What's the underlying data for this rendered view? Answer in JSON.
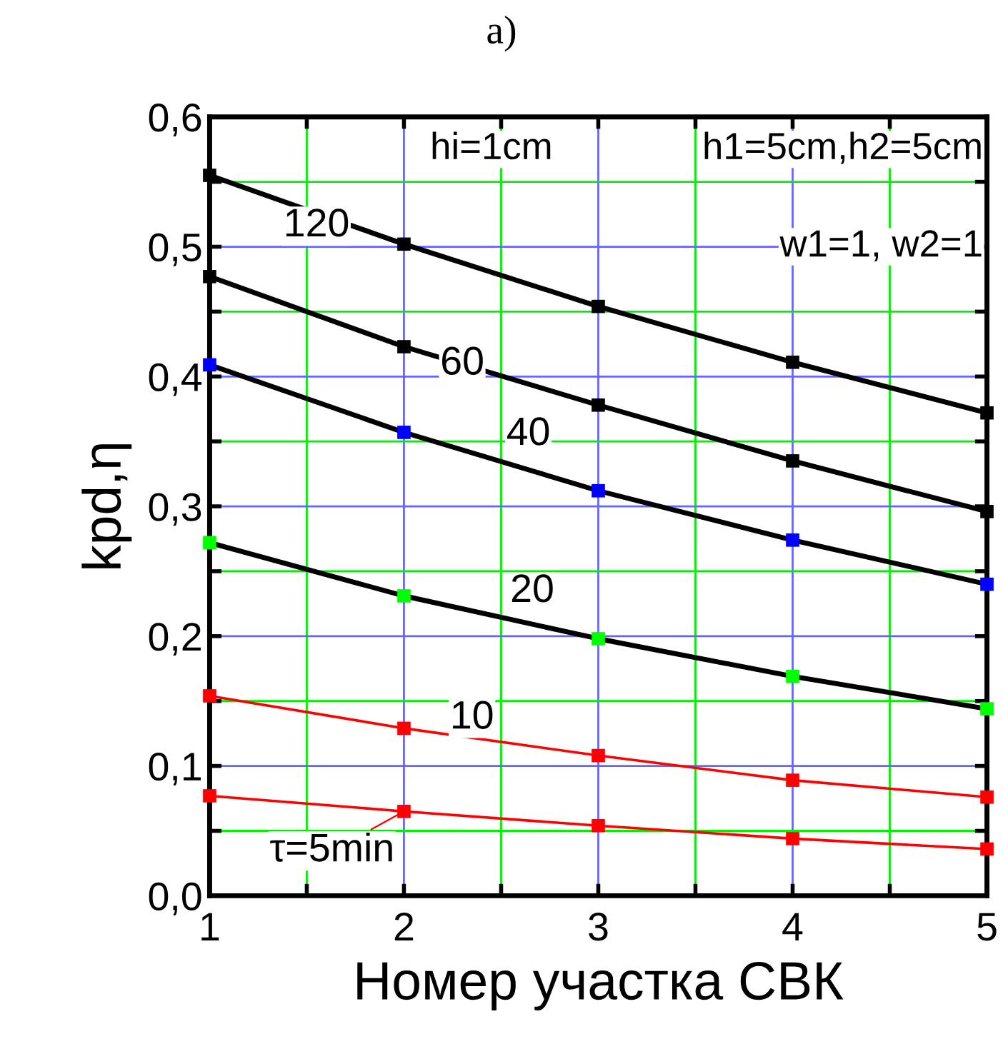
{
  "chart_data": {
    "type": "line",
    "title": "a)",
    "xlabel": "Номер участка СВК",
    "ylabel": "kpd,η",
    "x": [
      1,
      2,
      3,
      4,
      5
    ],
    "series": [
      {
        "name": "120",
        "color": "#000000",
        "colors": [
          "#000000",
          "#000000",
          "#000000",
          "#000000",
          "#000000"
        ],
        "values": [
          0.555,
          0.502,
          0.454,
          0.411,
          0.372
        ]
      },
      {
        "name": "60",
        "color": "#000000",
        "colors": [
          "#000000",
          "#000000",
          "#000000",
          "#000000",
          "#000000"
        ],
        "values": [
          0.477,
          0.423,
          0.378,
          0.335,
          0.296
        ]
      },
      {
        "name": "40",
        "color": "#000000",
        "colors": [
          "#0000ff",
          "#0000ff",
          "#0000ff",
          "#0000ff",
          "#0000ff"
        ],
        "values": [
          0.409,
          0.357,
          0.312,
          0.274,
          0.24
        ]
      },
      {
        "name": "20",
        "color": "#000000",
        "colors": [
          "#00ff00",
          "#00ff00",
          "#00ff00",
          "#00ff00",
          "#00ff00"
        ],
        "values": [
          0.272,
          0.231,
          0.198,
          0.169,
          0.144
        ]
      },
      {
        "name": "10",
        "color": "#ff0000",
        "colors": [
          "#ff0000",
          "#ff0000",
          "#ff0000",
          "#ff0000",
          "#ff0000"
        ],
        "values": [
          0.154,
          0.129,
          0.108,
          0.089,
          0.076
        ]
      },
      {
        "name": "τ=5min",
        "color": "#ff0000",
        "colors": [
          "#ff0000",
          "#ff0000",
          "#ff0000",
          "#ff0000",
          "#ff0000"
        ],
        "values": [
          0.077,
          0.065,
          0.054,
          0.044,
          0.036
        ]
      }
    ],
    "annotations": [
      "hi=1cm",
      "h1=5cm,h2=5cm",
      "w1=1, w2=1"
    ],
    "xlim": [
      1,
      5
    ],
    "ylim": [
      0,
      0.6
    ],
    "xticks": [
      1,
      {
        "value": 1.5,
        "label": null
      },
      2,
      {
        "value": 2.5,
        "label": null
      },
      3,
      {
        "value": 3.5,
        "label": null
      },
      4,
      {
        "value": 4.5,
        "label": null
      },
      5
    ],
    "yticks": [
      {
        "value": 0.0,
        "label": "0,0"
      },
      {
        "value": 0.05,
        "label": null
      },
      {
        "value": 0.1,
        "label": "0,1"
      },
      {
        "value": 0.15,
        "label": null
      },
      {
        "value": 0.2,
        "label": "0,2"
      },
      {
        "value": 0.25,
        "label": null
      },
      {
        "value": 0.3,
        "label": "0,3"
      },
      {
        "value": 0.35,
        "label": null
      },
      {
        "value": 0.4,
        "label": "0,4"
      },
      {
        "value": 0.45,
        "label": null
      },
      {
        "value": 0.5,
        "label": "0,5"
      },
      {
        "value": 0.55,
        "label": null
      },
      {
        "value": 0.6,
        "label": "0,6"
      }
    ],
    "grid": true,
    "marker": "square",
    "line_style": "solid"
  }
}
